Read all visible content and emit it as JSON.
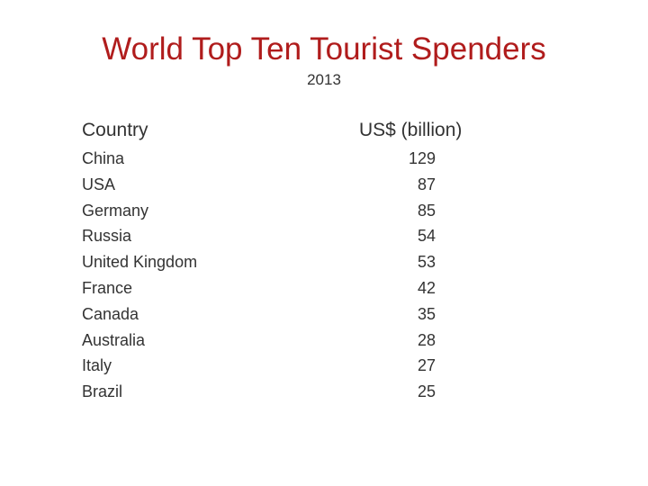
{
  "title": "World Top Ten Tourist Spenders",
  "subtitle": "2013",
  "table": {
    "headers": {
      "country": "Country",
      "value": "US$ (billion)"
    },
    "rows": [
      {
        "country": "China",
        "value": "129"
      },
      {
        "country": "USA",
        "value": "87"
      },
      {
        "country": "Germany",
        "value": "85"
      },
      {
        "country": "Russia",
        "value": "54"
      },
      {
        "country": "United Kingdom",
        "value": "53"
      },
      {
        "country": "France",
        "value": "42"
      },
      {
        "country": "Canada",
        "value": "35"
      },
      {
        "country": "Australia",
        "value": "28"
      },
      {
        "country": "Italy",
        "value": "27"
      },
      {
        "country": "Brazil",
        "value": "25"
      }
    ]
  },
  "colors": {
    "title": "#b01c1c",
    "text": "#333333",
    "background": "#ffffff"
  }
}
